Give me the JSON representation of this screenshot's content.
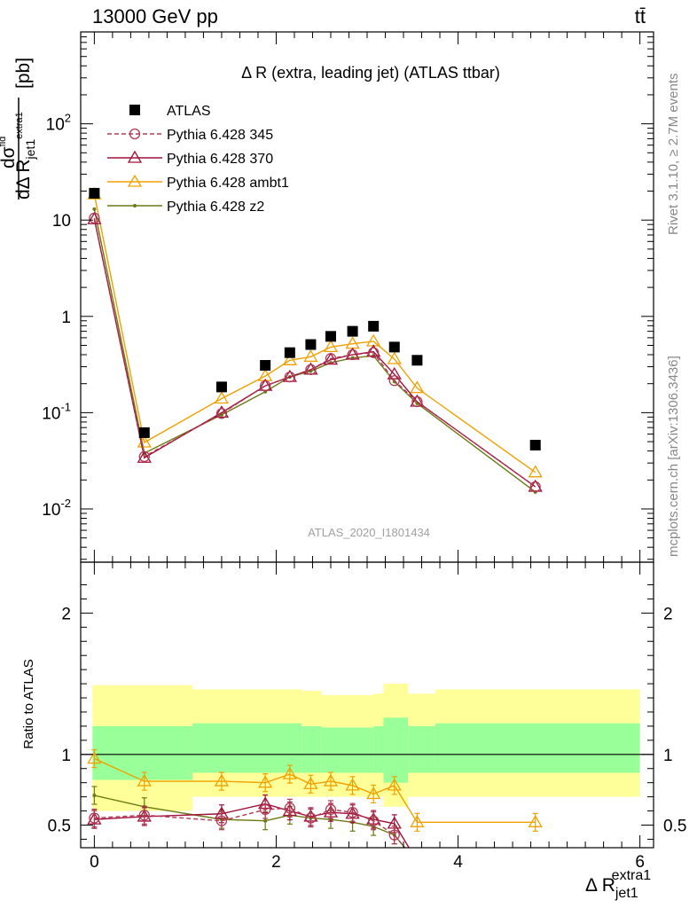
{
  "header": {
    "left": "13000 GeV pp",
    "right": "tt̄"
  },
  "side_labels": {
    "rivet": "Rivet 3.1.10, ≥ 2.7M events",
    "mcplots": "mcplots.cern.ch [arXiv:1306.3436]"
  },
  "chart_data": [
    {
      "type": "line",
      "panel": "main",
      "title": "Δ R (extra, leading jet) (ATLAS ttbar)",
      "ylabel": "dσ^fid / dΔ R_jet1^extra1 [pb]",
      "yscale": "log",
      "ylim": [
        0.0028,
        900
      ],
      "xlim": [
        -0.15,
        6.15
      ],
      "grid": false,
      "legend_position": "top-left",
      "analysis_label": "ATLAS_2020_I1801434",
      "y_tick_labels": [
        "10^-2",
        "10^-1",
        "1",
        "10",
        "10^2"
      ],
      "x": [
        0.0,
        0.55,
        1.4,
        1.88,
        2.15,
        2.38,
        2.6,
        2.84,
        3.07,
        3.3,
        3.55,
        4.85
      ],
      "series": [
        {
          "name": "ATLAS",
          "marker": "filled-square",
          "color": "#000000",
          "values": [
            19,
            0.062,
            0.185,
            0.31,
            0.42,
            0.51,
            0.62,
            0.7,
            0.79,
            0.48,
            0.35,
            0.046
          ]
        },
        {
          "name": "Pythia 6.428 345",
          "marker": "open-circle",
          "line": "dashed",
          "color": "#b03a55",
          "values": [
            10.5,
            0.035,
            0.098,
            0.19,
            0.235,
            0.28,
            0.365,
            0.4,
            0.42,
            0.215,
            0.13,
            0.017
          ]
        },
        {
          "name": "Pythia 6.428 370",
          "marker": "open-triangle",
          "line": "solid",
          "color": "#a0103a",
          "values": [
            10.2,
            0.034,
            0.1,
            0.19,
            0.235,
            0.28,
            0.355,
            0.4,
            0.43,
            0.25,
            0.13,
            0.017
          ]
        },
        {
          "name": "Pythia 6.428 ambt1",
          "marker": "open-triangle",
          "line": "solid",
          "color": "#f0a000",
          "values": [
            18.5,
            0.049,
            0.14,
            0.24,
            0.35,
            0.38,
            0.48,
            0.52,
            0.55,
            0.36,
            0.18,
            0.024
          ]
        },
        {
          "name": "Pythia 6.428 z2",
          "marker": "dot",
          "line": "solid",
          "color": "#6b7a12",
          "values": [
            13,
            0.038,
            0.095,
            0.165,
            0.235,
            0.27,
            0.33,
            0.37,
            0.39,
            0.21,
            0.125,
            0.015
          ]
        }
      ]
    },
    {
      "type": "line",
      "panel": "ratio",
      "ylabel": "Ratio to ATLAS",
      "xlabel": "Δ R_jet1^extra1",
      "ylim": [
        0.34,
        2.36
      ],
      "xlim": [
        -0.15,
        6.15
      ],
      "x_tick_labels": [
        "0",
        "2",
        "4",
        "6"
      ],
      "y_tick_labels": [
        "0.5",
        "1",
        "2"
      ],
      "reference_line": 1,
      "bands": [
        {
          "x0": -0.02,
          "x1": 1.08,
          "yellow": [
            0.6,
            1.49
          ],
          "green": [
            0.82,
            1.2
          ]
        },
        {
          "x0": 1.08,
          "x1": 2.28,
          "yellow": [
            0.7,
            1.46
          ],
          "green": [
            0.87,
            1.22
          ]
        },
        {
          "x0": 2.28,
          "x1": 2.5,
          "yellow": [
            0.7,
            1.45
          ],
          "green": [
            0.87,
            1.2
          ]
        },
        {
          "x0": 2.5,
          "x1": 3.07,
          "yellow": [
            0.7,
            1.42
          ],
          "green": [
            0.87,
            1.19
          ]
        },
        {
          "x0": 3.07,
          "x1": 3.18,
          "yellow": [
            0.7,
            1.43
          ],
          "green": [
            0.87,
            1.2
          ]
        },
        {
          "x0": 3.18,
          "x1": 3.45,
          "yellow": [
            0.63,
            1.5
          ],
          "green": [
            0.8,
            1.26
          ]
        },
        {
          "x0": 3.45,
          "x1": 3.75,
          "yellow": [
            0.7,
            1.43
          ],
          "green": [
            0.87,
            1.2
          ]
        },
        {
          "x0": 3.75,
          "x1": 6.0,
          "yellow": [
            0.7,
            1.46
          ],
          "green": [
            0.87,
            1.22
          ]
        }
      ],
      "series": [
        {
          "name": "Pythia 6.428 345",
          "values": [
            0.55,
            0.57,
            0.53,
            0.61,
            0.62,
            0.55,
            0.61,
            0.59,
            0.53,
            0.43,
            null,
            null
          ]
        },
        {
          "name": "Pythia 6.428 370",
          "values": [
            0.54,
            0.56,
            0.58,
            0.65,
            0.6,
            0.56,
            0.59,
            0.58,
            0.54,
            0.51,
            null,
            null
          ]
        },
        {
          "name": "Pythia 6.428 ambt1",
          "values": [
            0.97,
            0.81,
            0.81,
            0.8,
            0.86,
            0.79,
            0.81,
            0.78,
            0.72,
            0.78,
            0.52,
            0.52
          ]
        },
        {
          "name": "Pythia 6.428 z2",
          "values": [
            0.71,
            0.63,
            0.54,
            0.53,
            0.57,
            0.55,
            0.54,
            0.52,
            0.49,
            0.43,
            null,
            null
          ]
        }
      ]
    }
  ]
}
